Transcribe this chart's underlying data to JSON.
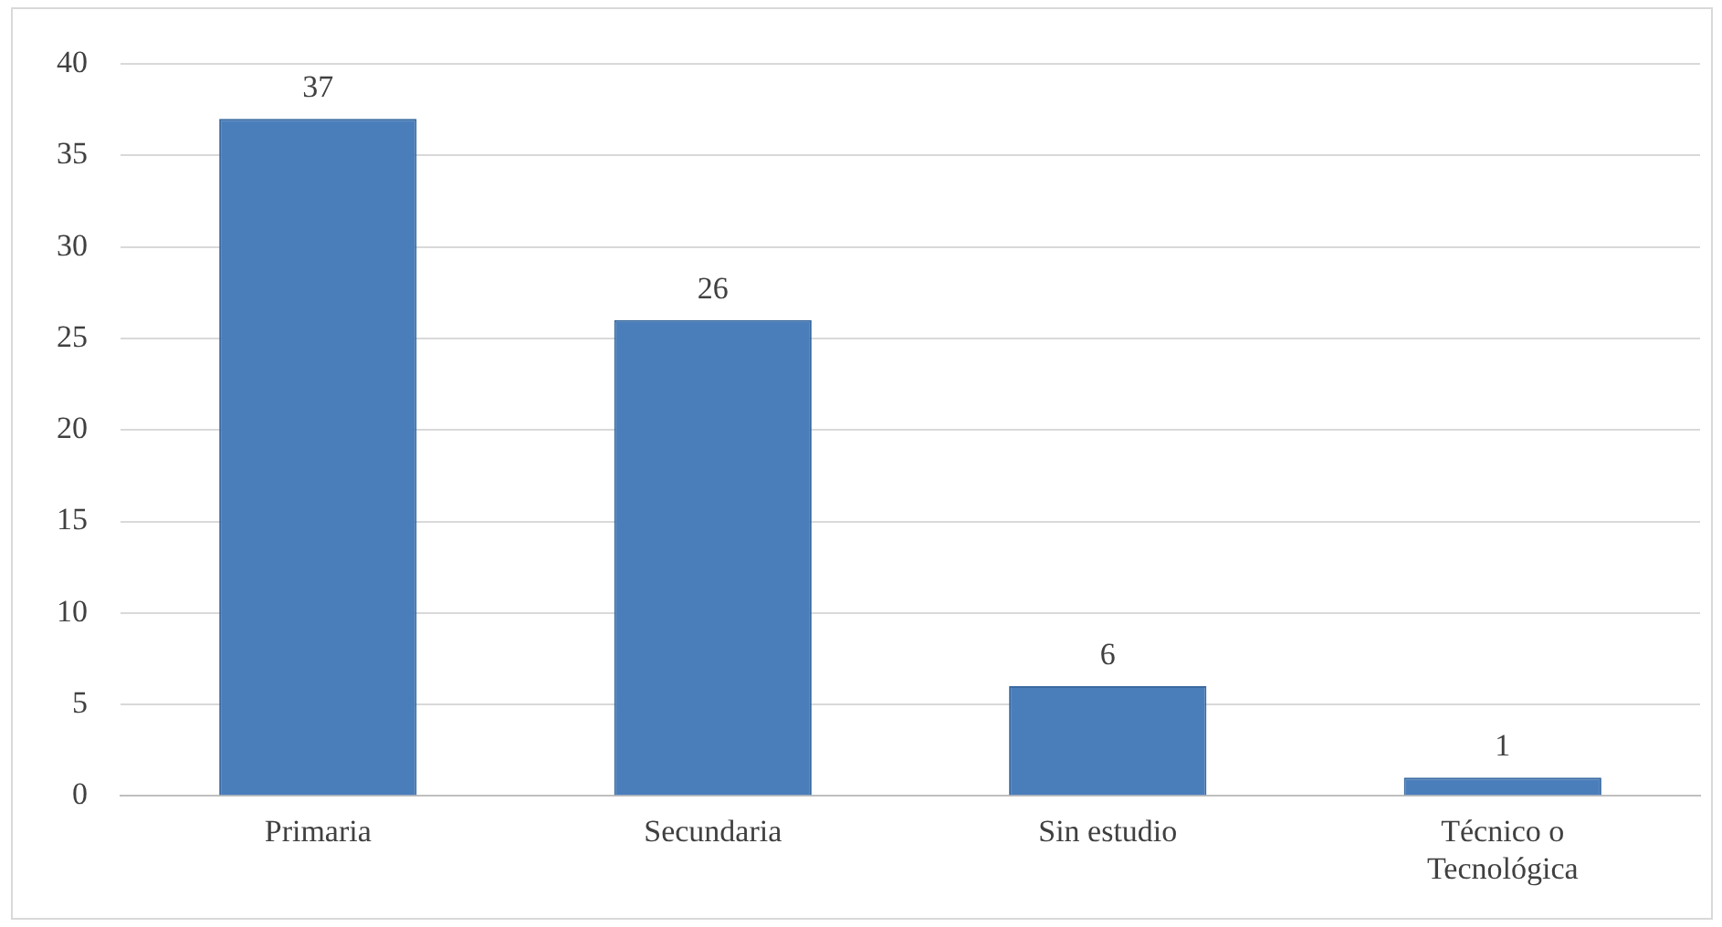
{
  "chart_data": {
    "type": "bar",
    "categories": [
      "Primaria",
      "Secundaria",
      "Sin estudio",
      "Técnico o Tecnológica"
    ],
    "values": [
      37,
      26,
      6,
      1
    ],
    "color": "#4a7ebb",
    "ylim": [
      0,
      40
    ],
    "yticks": [
      0,
      5,
      10,
      15,
      20,
      25,
      30,
      35,
      40
    ],
    "grid": "y",
    "data_labels": true,
    "legend": false
  }
}
